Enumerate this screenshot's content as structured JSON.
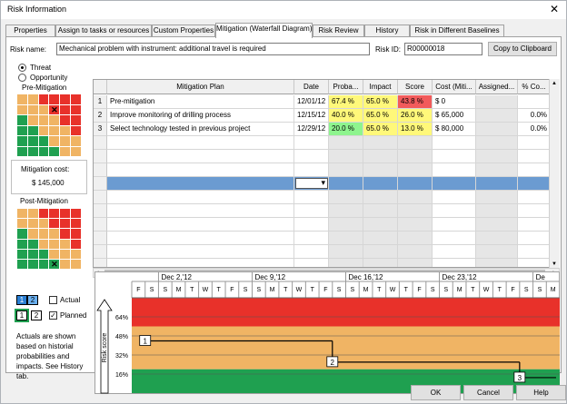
{
  "window": {
    "title": "Risk Information",
    "close_glyph": "✕"
  },
  "tabs": [
    {
      "label": "Properties"
    },
    {
      "label": "Assign to tasks or resources"
    },
    {
      "label": "Custom Properties"
    },
    {
      "label": "Mitigation (Waterfall Diagram)",
      "active": true
    },
    {
      "label": "Risk Review"
    },
    {
      "label": "History"
    },
    {
      "label": "Risk in Different Baselines"
    }
  ],
  "risk": {
    "name_label": "Risk name:",
    "name_value": "Mechanical problem with instrument: additional travel is required",
    "id_label": "Risk ID:",
    "id_value": "R00000018",
    "copy_button": "Copy to Clipboard"
  },
  "risk_type": {
    "threat": "Threat",
    "opportunity": "Opportunity",
    "selected": "Threat"
  },
  "pre_mitigation": {
    "label": "Pre-Mitigation",
    "marker": "✕"
  },
  "mitigation_cost": {
    "label": "Mitigation cost:",
    "value": "$ 145,000"
  },
  "post_mitigation": {
    "label": "Post-Mitigation",
    "marker": "✕"
  },
  "colors": {
    "red": "#e8312a",
    "orange": "#f0b464",
    "green": "#1fa050",
    "selection": "#6b9bd1",
    "prob_yellow": "#fff87a",
    "prob_green": "#8ef48e",
    "score_red": "#f25b5b"
  },
  "table": {
    "headers": [
      "",
      "Mitigation Plan",
      "Date",
      "Proba...",
      "Impact",
      "Score",
      "Cost (Miti...",
      "Assigned...",
      "% Co..."
    ],
    "rows": [
      {
        "n": "1",
        "plan": "Pre-mitigation",
        "date": "12/01/12",
        "prob": "67.4 %",
        "impact": "65.0 %",
        "score": "43.8 %",
        "cost": "$ 0",
        "assigned": "",
        "pct": ""
      },
      {
        "n": "2",
        "plan": "Improve monitoring of drilling process",
        "date": "12/15/12",
        "prob": "40.0 %",
        "impact": "65.0 %",
        "score": "26.0 %",
        "cost": "$ 65,000",
        "assigned": "",
        "pct": "0.0%"
      },
      {
        "n": "3",
        "plan": "Select technology tested in previous project",
        "date": "12/29/12",
        "prob": "20.0 %",
        "impact": "65.0 %",
        "score": "13.0 %",
        "cost": "$ 80,000",
        "assigned": "",
        "pct": "0.0%"
      }
    ]
  },
  "legend": {
    "actual_label": "Actual",
    "planned_label": "Planned",
    "box1": "1",
    "box2": "2",
    "note": "Actuals are shown based on historial probabilities and impacts. See History tab."
  },
  "timeline": {
    "weeks": [
      "Dec 2,'12",
      "Dec 9,'12",
      "Dec 16,'12",
      "Dec 23,'12",
      "De"
    ],
    "days": [
      "F",
      "S",
      "S",
      "M",
      "T",
      "W",
      "T",
      "F",
      "S",
      "S",
      "M",
      "T",
      "W",
      "T",
      "F",
      "S",
      "S",
      "M",
      "T",
      "W",
      "T",
      "F",
      "S",
      "S",
      "M",
      "T",
      "W",
      "T",
      "F",
      "S",
      "S",
      "M"
    ],
    "y_axis_label": "Risk score",
    "y_ticks": [
      "64%",
      "48%",
      "32%",
      "16%"
    ],
    "steps": [
      {
        "label": "1",
        "score": 43.8
      },
      {
        "label": "2",
        "score": 26.0
      },
      {
        "label": "3",
        "score": 13.0
      }
    ]
  },
  "footer": {
    "ok": "OK",
    "cancel": "Cancel",
    "help": "Help"
  }
}
